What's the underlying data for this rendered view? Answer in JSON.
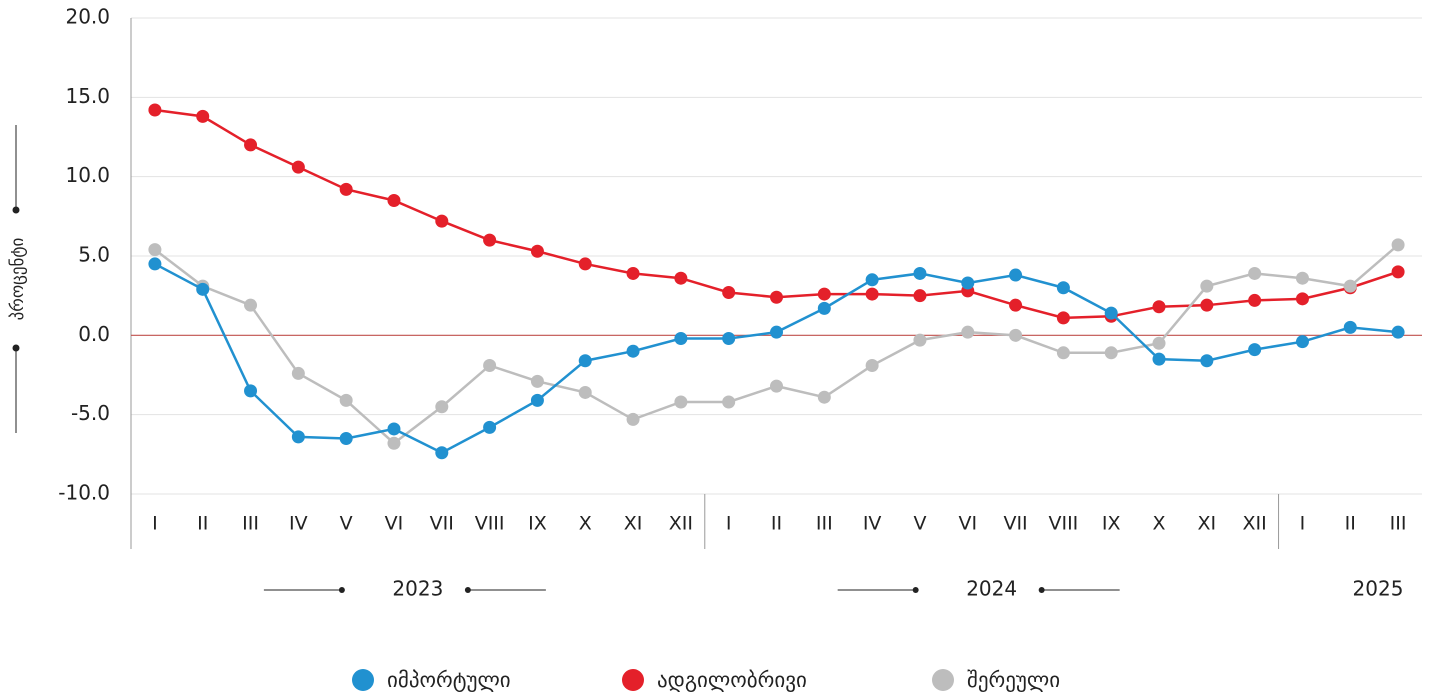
{
  "chart_data": {
    "type": "line",
    "y_label": "პროცენტი",
    "category_groups": [
      {
        "label": "2023",
        "categories": [
          "I",
          "II",
          "III",
          "IV",
          "V",
          "VI",
          "VII",
          "VIII",
          "IX",
          "X",
          "XI",
          "XII"
        ]
      },
      {
        "label": "2024",
        "categories": [
          "I",
          "II",
          "III",
          "IV",
          "V",
          "VI",
          "VII",
          "VIII",
          "IX",
          "X",
          "XI",
          "XII"
        ]
      },
      {
        "label": "2025",
        "categories": [
          "I",
          "II",
          "III"
        ]
      }
    ],
    "series": [
      {
        "name": "იმპორტული",
        "color": "#2191d0",
        "values": [
          4.5,
          2.9,
          -3.5,
          -6.4,
          -6.5,
          -5.9,
          -7.4,
          -5.8,
          -4.1,
          -1.6,
          -1.0,
          -0.2,
          -0.2,
          0.2,
          1.7,
          3.5,
          3.9,
          3.3,
          3.8,
          3.0,
          1.4,
          -1.5,
          -1.6,
          -0.9,
          -0.4,
          0.5,
          0.2
        ]
      },
      {
        "name": "ადგილობრივი",
        "color": "#e4202a",
        "values": [
          14.2,
          13.8,
          12.0,
          10.6,
          9.2,
          8.5,
          7.2,
          6.0,
          5.3,
          4.5,
          3.9,
          3.6,
          2.7,
          2.4,
          2.6,
          2.6,
          2.5,
          2.8,
          1.9,
          1.1,
          1.2,
          1.8,
          1.9,
          2.2,
          2.3,
          3.0,
          4.0
        ]
      },
      {
        "name": "შერეული",
        "color": "#bdbdbd",
        "values": [
          5.4,
          3.1,
          1.9,
          -2.4,
          -4.1,
          -6.8,
          -4.5,
          -1.9,
          -2.9,
          -3.6,
          -5.3,
          -4.2,
          -4.2,
          -3.2,
          -3.9,
          -1.9,
          -0.3,
          0.2,
          0.0,
          -1.1,
          -1.1,
          -0.5,
          3.1,
          3.9,
          3.6,
          3.1,
          5.7
        ]
      }
    ],
    "ylim": [
      -10,
      20
    ],
    "yticks": [
      {
        "value": -10,
        "label": "-10.0"
      },
      {
        "value": -5,
        "label": "-5.0"
      },
      {
        "value": 0,
        "label": "0.0"
      },
      {
        "value": 5,
        "label": "5.0"
      },
      {
        "value": 10,
        "label": "10.0"
      },
      {
        "value": 15,
        "label": "15.0"
      },
      {
        "value": 20,
        "label": "20.0"
      }
    ],
    "grid": true,
    "zero_line_color": "#c0504d",
    "legend": "bottom"
  }
}
